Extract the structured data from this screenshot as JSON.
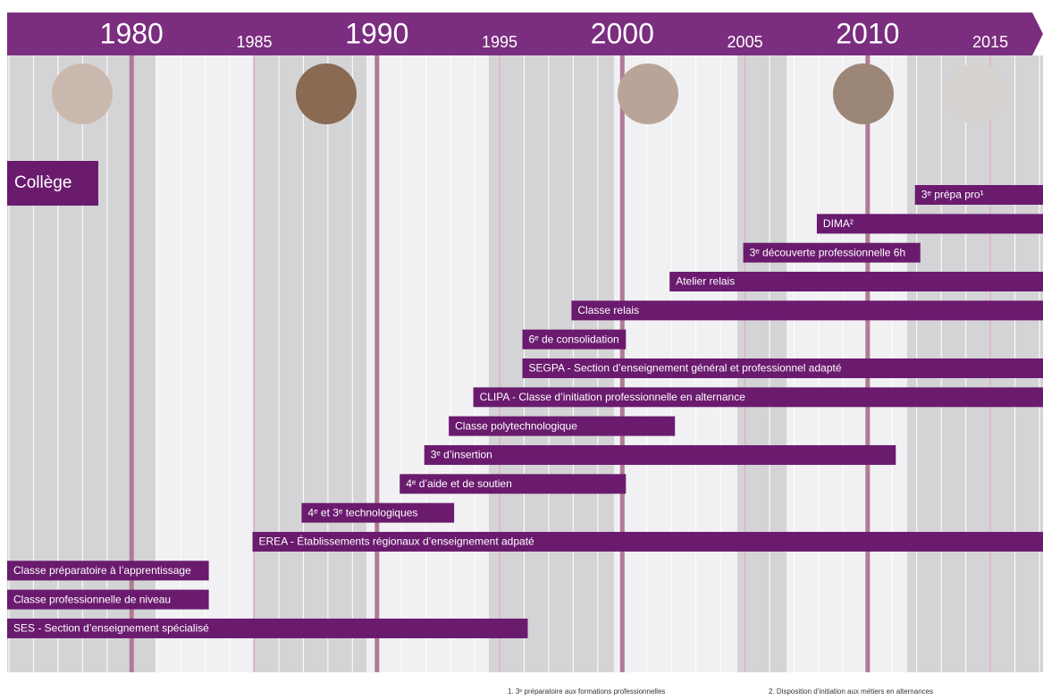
{
  "chart_data": {
    "type": "gantt",
    "xlim": [
      1975,
      2017
    ],
    "xticks": [
      1980,
      1985,
      1990,
      1995,
      2000,
      2005,
      2010,
      2015
    ],
    "section": "Collège",
    "color": "#6a1b6e",
    "header_color": "#7b2d7f",
    "tasks": [
      {
        "name": "3ᵉ prépa pro¹",
        "start": 2012,
        "end": 2017
      },
      {
        "name": "DIMA²",
        "start": 2008,
        "end": 2017
      },
      {
        "name": "3ᵉ découverte professionnelle 6h",
        "start": 2005,
        "end": 2012
      },
      {
        "name": "Atelier relais",
        "start": 2002,
        "end": 2017
      },
      {
        "name": "Classe relais",
        "start": 1998,
        "end": 2017
      },
      {
        "name": "6ᵉ de consolidation",
        "start": 1996,
        "end": 2000
      },
      {
        "name": "SEGPA - Section d’enseignement général et professionnel adapté",
        "start": 1996,
        "end": 2017
      },
      {
        "name": "CLIPA - Classe d’initiation professionnelle en alternance",
        "start": 1994,
        "end": 2017
      },
      {
        "name": "Classe polytechnologique",
        "start": 1993,
        "end": 2002
      },
      {
        "name": "3ᵉ d’insertion",
        "start": 1992,
        "end": 2011
      },
      {
        "name": "4ᵉ d’aide et de soutien",
        "start": 1991,
        "end": 2000
      },
      {
        "name": "4ᵉ et 3ᵉ technologiques",
        "start": 1987,
        "end": 1993
      },
      {
        "name": "EREA - Établissements régionaux d’enseignement adpaté",
        "start": 1985,
        "end": 2017
      },
      {
        "name": "Classe préparatoire à l’apprentissage",
        "start": 1975,
        "end": 1983
      },
      {
        "name": "Classe professionnelle de niveau",
        "start": 1975,
        "end": 1983
      },
      {
        "name": "SES - Section d’enseignement spécialisé",
        "start": 1975,
        "end": 1996
      }
    ],
    "footnotes": [
      "1. 3ᵉ préparatoire aux formations professionnelles",
      "2. Disposition d’initiation aux métiers en alternances"
    ]
  }
}
